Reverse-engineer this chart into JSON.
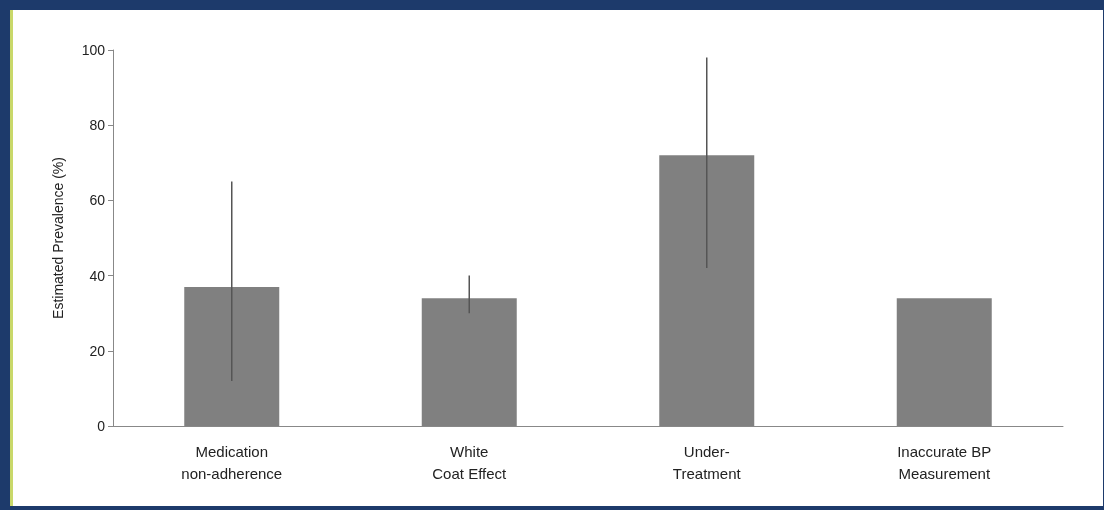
{
  "chart_data": {
    "type": "bar",
    "ylabel": "Estimated Prevalence (%)",
    "categories": [
      "Medication\nnon-adherence",
      "White\nCoat Effect",
      "Under-\nTreatment",
      "Inaccurate BP\nMeasurement"
    ],
    "values": [
      37,
      34,
      72,
      34
    ],
    "errors": [
      [
        12,
        65
      ],
      [
        30,
        40
      ],
      [
        42,
        98
      ],
      null
    ],
    "color": "#808080",
    "ylim": [
      0,
      100
    ],
    "yticks": [
      0,
      20,
      40,
      60,
      80,
      100
    ],
    "grid": false
  }
}
